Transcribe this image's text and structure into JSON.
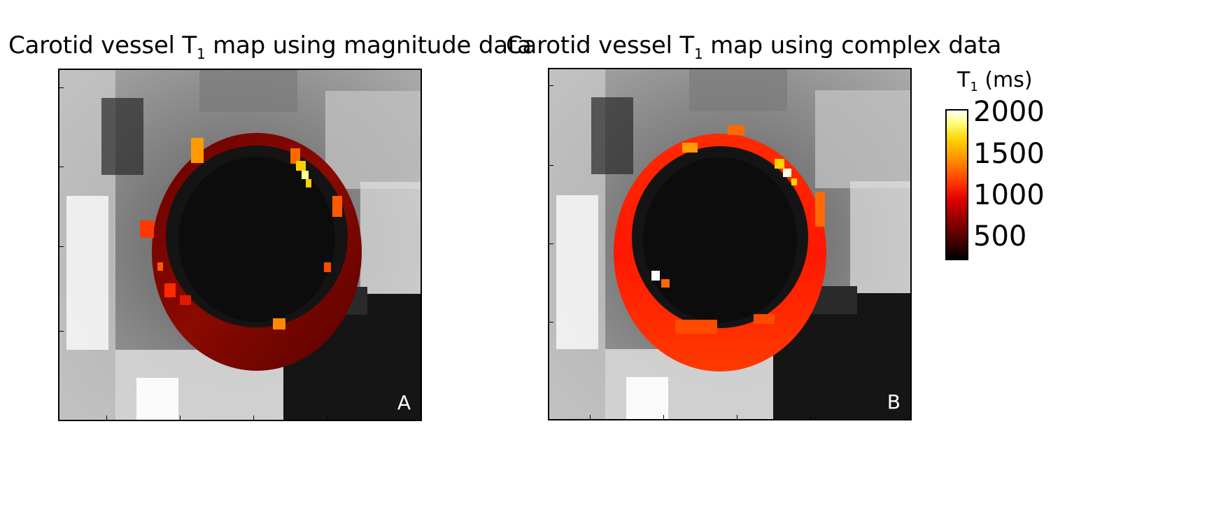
{
  "panels": [
    {
      "title_main": "Carotid vessel T",
      "title_sub": "1",
      "title_rest": " map using magnitude data",
      "letter": "A"
    },
    {
      "title_main": "Carotid vessel T",
      "title_sub": "1",
      "title_rest": " map using complex data",
      "letter": "B"
    }
  ],
  "colorbar": {
    "label_main": "T",
    "label_sub": "1",
    "label_unit": " (ms)",
    "ticks": [
      "2000",
      "1500",
      "1000",
      "500"
    ],
    "colormap": "hot"
  }
}
